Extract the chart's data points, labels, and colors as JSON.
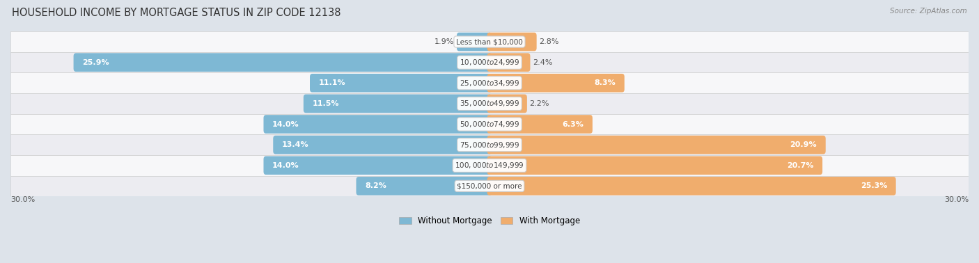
{
  "title": "HOUSEHOLD INCOME BY MORTGAGE STATUS IN ZIP CODE 12138",
  "source": "Source: ZipAtlas.com",
  "categories": [
    "Less than $10,000",
    "$10,000 to $24,999",
    "$25,000 to $34,999",
    "$35,000 to $49,999",
    "$50,000 to $74,999",
    "$75,000 to $99,999",
    "$100,000 to $149,999",
    "$150,000 or more"
  ],
  "without_mortgage": [
    1.9,
    25.9,
    11.1,
    11.5,
    14.0,
    13.4,
    14.0,
    8.2
  ],
  "with_mortgage": [
    2.8,
    2.4,
    8.3,
    2.2,
    6.3,
    20.9,
    20.7,
    25.3
  ],
  "color_without": "#7eb8d4",
  "color_with": "#f0ad6d",
  "axis_limit": 30.0,
  "row_colors": [
    "#f7f7f9",
    "#ececf1"
  ],
  "legend_label_without": "Without Mortgage",
  "legend_label_with": "With Mortgage",
  "title_fontsize": 10.5,
  "label_fontsize": 8,
  "category_fontsize": 7.5,
  "axis_label_fontsize": 8,
  "white_label_threshold": 6.0
}
